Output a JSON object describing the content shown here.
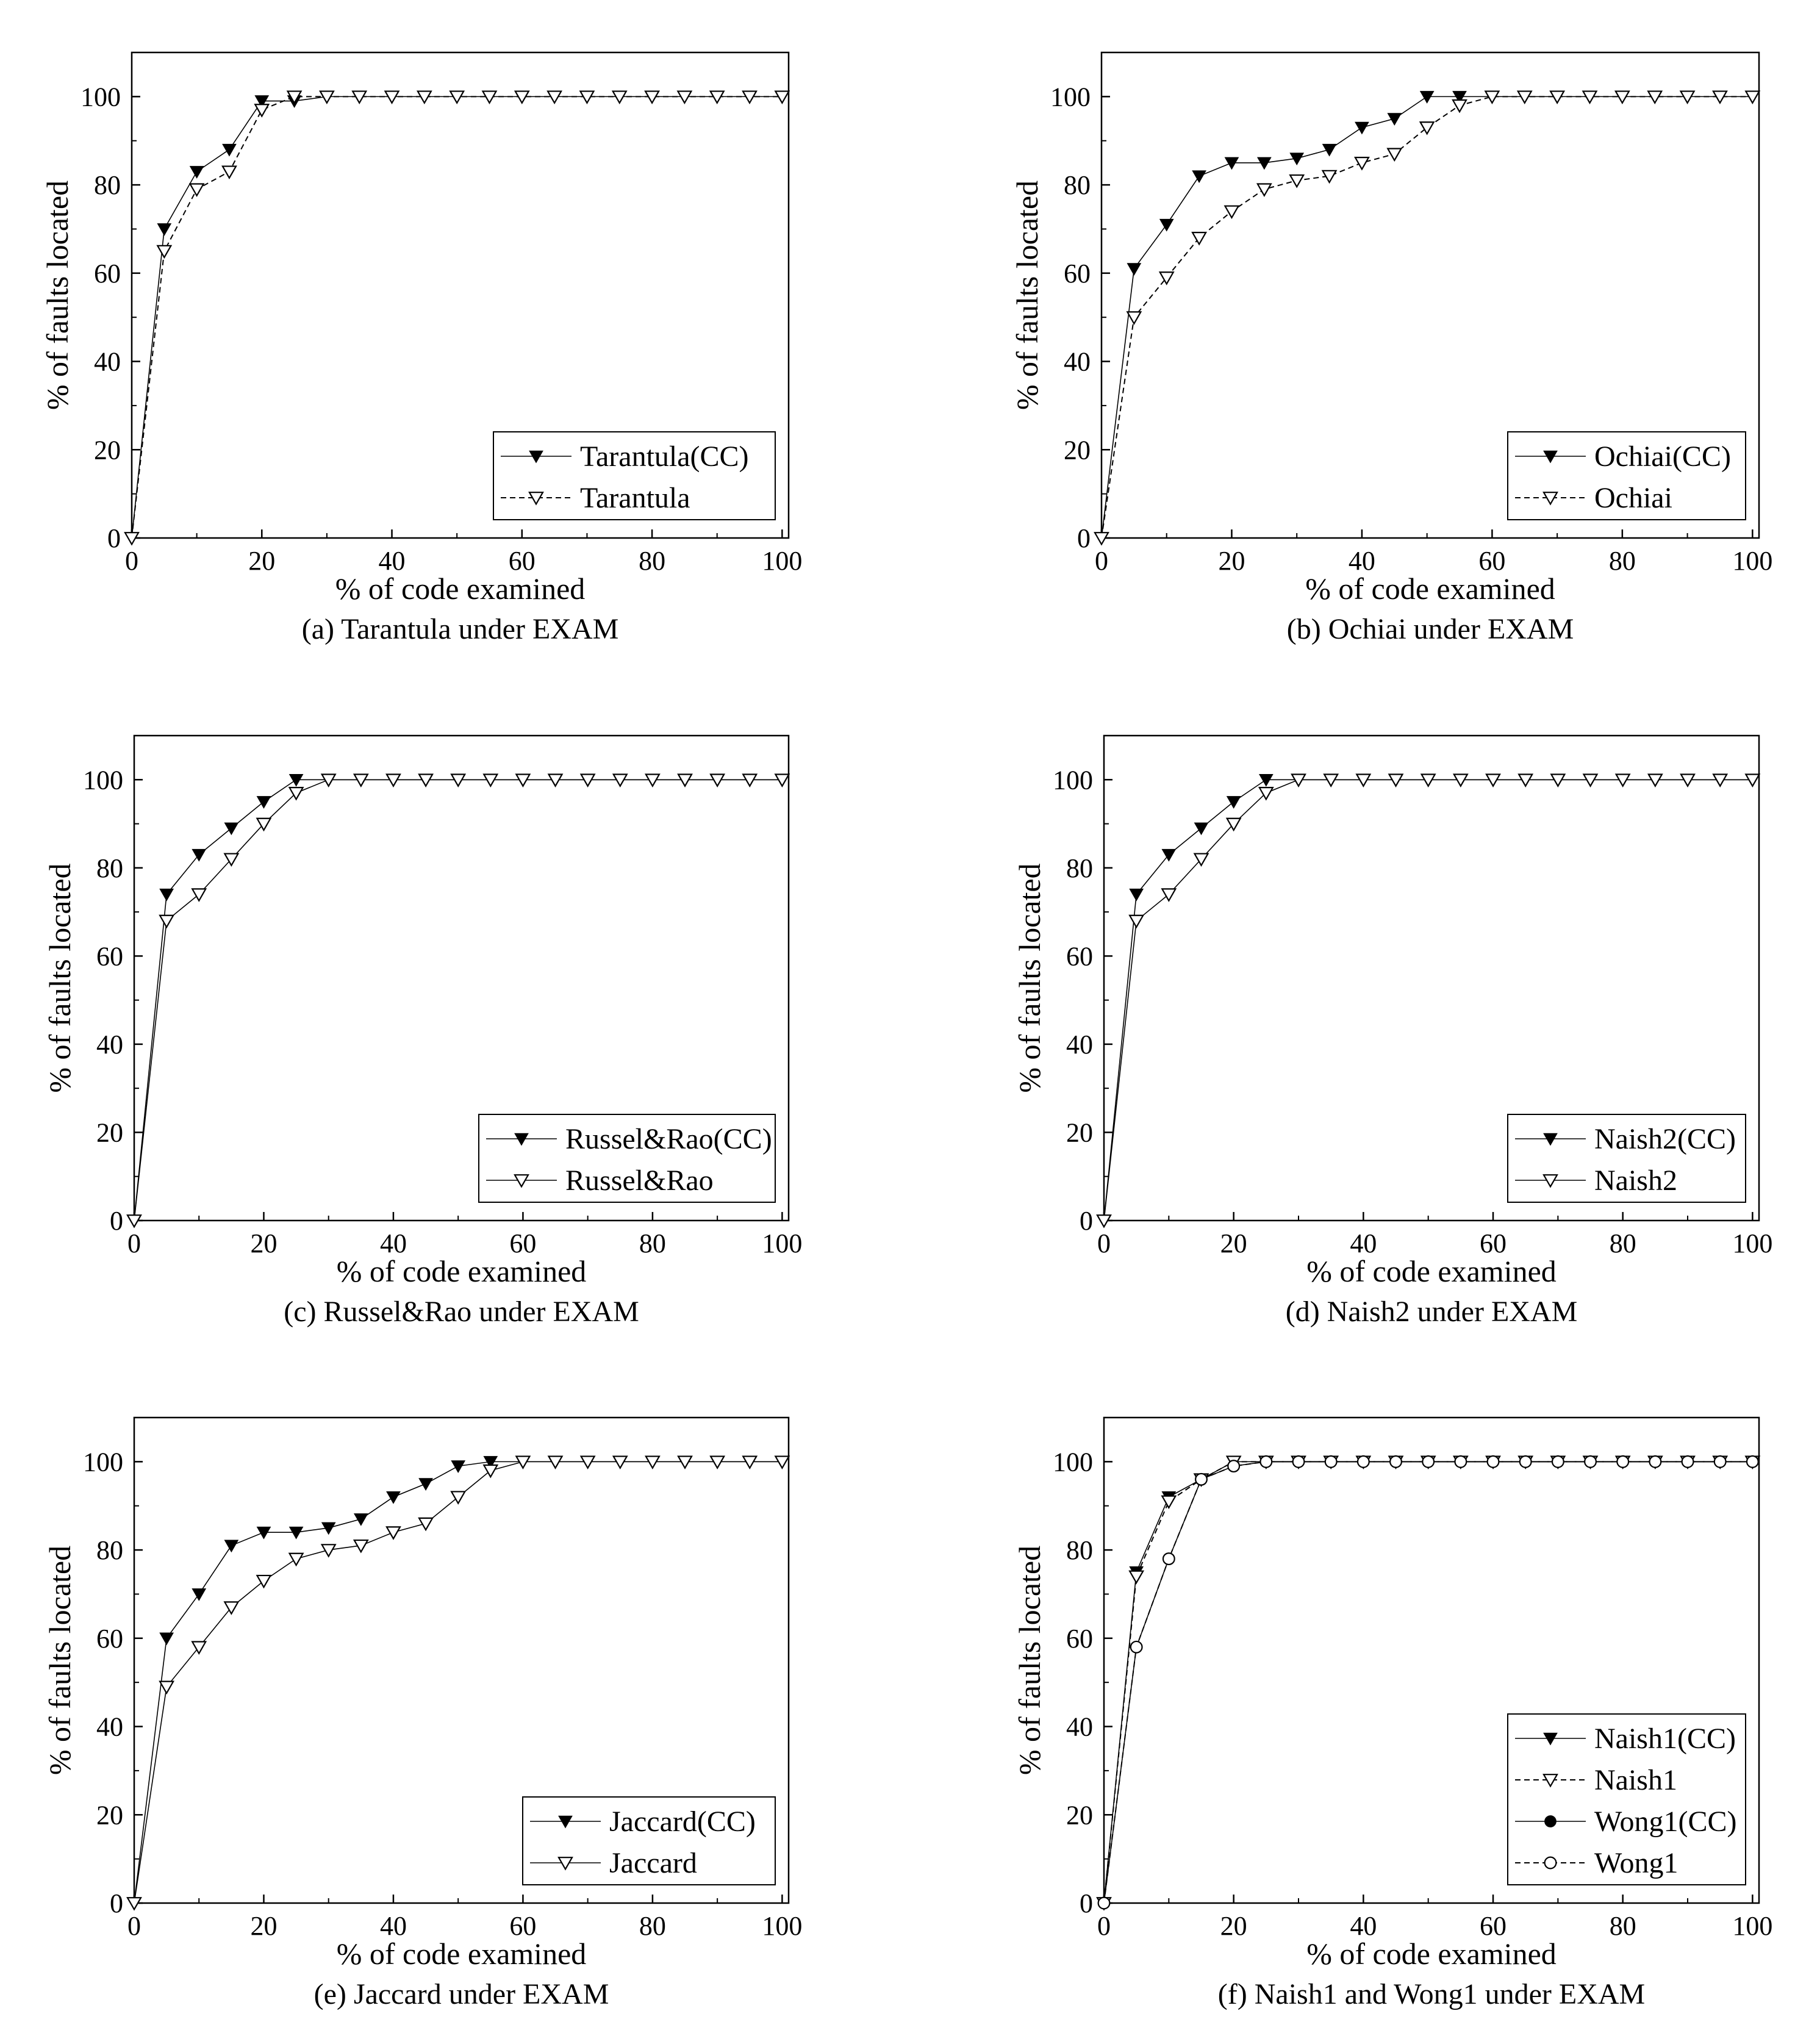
{
  "chart_data": [
    {
      "type": "line",
      "caption": "(a) Tarantula under EXAM",
      "xlabel": "% of code examined",
      "ylabel": "% of faults located",
      "xlim": [
        0,
        101
      ],
      "ylim": [
        0,
        110
      ],
      "xticks": [
        0,
        20,
        40,
        60,
        80,
        100
      ],
      "yticks": [
        0,
        20,
        40,
        60,
        80,
        100
      ],
      "grid": false,
      "legend_position": "bottom-right",
      "x": [
        0,
        5,
        10,
        15,
        20,
        25,
        30,
        35,
        40,
        45,
        50,
        55,
        60,
        65,
        70,
        75,
        80,
        85,
        90,
        95,
        100
      ],
      "series": [
        {
          "name": "Tarantula(CC)",
          "marker": "tri-down-filled",
          "line": "solid",
          "values": [
            0,
            70,
            83,
            88,
            99,
            99,
            100,
            100,
            100,
            100,
            100,
            100,
            100,
            100,
            100,
            100,
            100,
            100,
            100,
            100,
            100
          ]
        },
        {
          "name": "Tarantula",
          "marker": "tri-down-open",
          "line": "dashed",
          "values": [
            0,
            65,
            79,
            83,
            97,
            100,
            100,
            100,
            100,
            100,
            100,
            100,
            100,
            100,
            100,
            100,
            100,
            100,
            100,
            100,
            100
          ]
        }
      ]
    },
    {
      "type": "line",
      "caption": "(b) Ochiai under EXAM",
      "xlabel": "% of code examined",
      "ylabel": "% of faults located",
      "xlim": [
        0,
        101
      ],
      "ylim": [
        0,
        110
      ],
      "xticks": [
        0,
        20,
        40,
        60,
        80,
        100
      ],
      "yticks": [
        0,
        20,
        40,
        60,
        80,
        100
      ],
      "grid": false,
      "legend_position": "bottom-right",
      "x": [
        0,
        5,
        10,
        15,
        20,
        25,
        30,
        35,
        40,
        45,
        50,
        55,
        60,
        65,
        70,
        75,
        80,
        85,
        90,
        95,
        100
      ],
      "series": [
        {
          "name": "Ochiai(CC)",
          "marker": "tri-down-filled",
          "line": "solid",
          "values": [
            0,
            61,
            71,
            82,
            85,
            85,
            86,
            88,
            93,
            95,
            100,
            100,
            100,
            100,
            100,
            100,
            100,
            100,
            100,
            100,
            100
          ]
        },
        {
          "name": "Ochiai",
          "marker": "tri-down-open",
          "line": "dashed",
          "values": [
            0,
            50,
            59,
            68,
            74,
            79,
            81,
            82,
            85,
            87,
            93,
            98,
            100,
            100,
            100,
            100,
            100,
            100,
            100,
            100,
            100
          ]
        }
      ]
    },
    {
      "type": "line",
      "caption": "(c) Russel&Rao under EXAM",
      "xlabel": "% of code examined",
      "ylabel": "% of faults located",
      "xlim": [
        0,
        101
      ],
      "ylim": [
        0,
        110
      ],
      "xticks": [
        0,
        20,
        40,
        60,
        80,
        100
      ],
      "yticks": [
        0,
        20,
        40,
        60,
        80,
        100
      ],
      "grid": false,
      "legend_position": "bottom-right",
      "x": [
        0,
        5,
        10,
        15,
        20,
        25,
        30,
        35,
        40,
        45,
        50,
        55,
        60,
        65,
        70,
        75,
        80,
        85,
        90,
        95,
        100
      ],
      "series": [
        {
          "name": "Russel&Rao(CC)",
          "marker": "tri-down-filled",
          "line": "solid",
          "values": [
            0,
            74,
            83,
            89,
            95,
            100,
            100,
            100,
            100,
            100,
            100,
            100,
            100,
            100,
            100,
            100,
            100,
            100,
            100,
            100,
            100
          ]
        },
        {
          "name": "Russel&Rao",
          "marker": "tri-down-open",
          "line": "solid",
          "values": [
            0,
            68,
            74,
            82,
            90,
            97,
            100,
            100,
            100,
            100,
            100,
            100,
            100,
            100,
            100,
            100,
            100,
            100,
            100,
            100,
            100
          ]
        }
      ]
    },
    {
      "type": "line",
      "caption": "(d) Naish2 under EXAM",
      "xlabel": "% of code examined",
      "ylabel": "% of faults located",
      "xlim": [
        0,
        101
      ],
      "ylim": [
        0,
        110
      ],
      "xticks": [
        0,
        20,
        40,
        60,
        80,
        100
      ],
      "yticks": [
        0,
        20,
        40,
        60,
        80,
        100
      ],
      "grid": false,
      "legend_position": "bottom-right",
      "x": [
        0,
        5,
        10,
        15,
        20,
        25,
        30,
        35,
        40,
        45,
        50,
        55,
        60,
        65,
        70,
        75,
        80,
        85,
        90,
        95,
        100
      ],
      "series": [
        {
          "name": "Naish2(CC)",
          "marker": "tri-down-filled",
          "line": "solid",
          "values": [
            0,
            74,
            83,
            89,
            95,
            100,
            100,
            100,
            100,
            100,
            100,
            100,
            100,
            100,
            100,
            100,
            100,
            100,
            100,
            100,
            100
          ]
        },
        {
          "name": "Naish2",
          "marker": "tri-down-open",
          "line": "solid",
          "values": [
            0,
            68,
            74,
            82,
            90,
            97,
            100,
            100,
            100,
            100,
            100,
            100,
            100,
            100,
            100,
            100,
            100,
            100,
            100,
            100,
            100
          ]
        }
      ]
    },
    {
      "type": "line",
      "caption": "(e) Jaccard under EXAM",
      "xlabel": "% of code examined",
      "ylabel": "% of faults located",
      "xlim": [
        0,
        101
      ],
      "ylim": [
        0,
        110
      ],
      "xticks": [
        0,
        20,
        40,
        60,
        80,
        100
      ],
      "yticks": [
        0,
        20,
        40,
        60,
        80,
        100
      ],
      "grid": false,
      "legend_position": "bottom-right",
      "x": [
        0,
        5,
        10,
        15,
        20,
        25,
        30,
        35,
        40,
        45,
        50,
        55,
        60,
        65,
        70,
        75,
        80,
        85,
        90,
        95,
        100
      ],
      "series": [
        {
          "name": "Jaccard(CC)",
          "marker": "tri-down-filled",
          "line": "solid",
          "values": [
            0,
            60,
            70,
            81,
            84,
            84,
            85,
            87,
            92,
            95,
            99,
            100,
            100,
            100,
            100,
            100,
            100,
            100,
            100,
            100,
            100
          ]
        },
        {
          "name": "Jaccard",
          "marker": "tri-down-open",
          "line": "solid",
          "values": [
            0,
            49,
            58,
            67,
            73,
            78,
            80,
            81,
            84,
            86,
            92,
            98,
            100,
            100,
            100,
            100,
            100,
            100,
            100,
            100,
            100
          ]
        }
      ]
    },
    {
      "type": "line",
      "caption": "(f) Naish1 and Wong1 under EXAM",
      "xlabel": "% of code examined",
      "ylabel": "% of faults located",
      "xlim": [
        0,
        101
      ],
      "ylim": [
        0,
        110
      ],
      "xticks": [
        0,
        20,
        40,
        60,
        80,
        100
      ],
      "yticks": [
        0,
        20,
        40,
        60,
        80,
        100
      ],
      "grid": false,
      "legend_position": "bottom-right",
      "x": [
        0,
        5,
        10,
        15,
        20,
        25,
        30,
        35,
        40,
        45,
        50,
        55,
        60,
        65,
        70,
        75,
        80,
        85,
        90,
        95,
        100
      ],
      "series": [
        {
          "name": "Naish1(CC)",
          "marker": "tri-down-filled",
          "line": "solid",
          "values": [
            0,
            75,
            92,
            96,
            100,
            100,
            100,
            100,
            100,
            100,
            100,
            100,
            100,
            100,
            100,
            100,
            100,
            100,
            100,
            100,
            100
          ]
        },
        {
          "name": "Naish1",
          "marker": "tri-down-open",
          "line": "dashed",
          "values": [
            0,
            74,
            91,
            96,
            100,
            100,
            100,
            100,
            100,
            100,
            100,
            100,
            100,
            100,
            100,
            100,
            100,
            100,
            100,
            100,
            100
          ]
        },
        {
          "name": "Wong1(CC)",
          "marker": "circle-filled",
          "line": "solid",
          "values": [
            0,
            58,
            78,
            96,
            99,
            100,
            100,
            100,
            100,
            100,
            100,
            100,
            100,
            100,
            100,
            100,
            100,
            100,
            100,
            100,
            100
          ]
        },
        {
          "name": "Wong1",
          "marker": "circle-open",
          "line": "dashed",
          "values": [
            0,
            58,
            78,
            96,
            99,
            100,
            100,
            100,
            100,
            100,
            100,
            100,
            100,
            100,
            100,
            100,
            100,
            100,
            100,
            100,
            100
          ]
        }
      ]
    }
  ]
}
